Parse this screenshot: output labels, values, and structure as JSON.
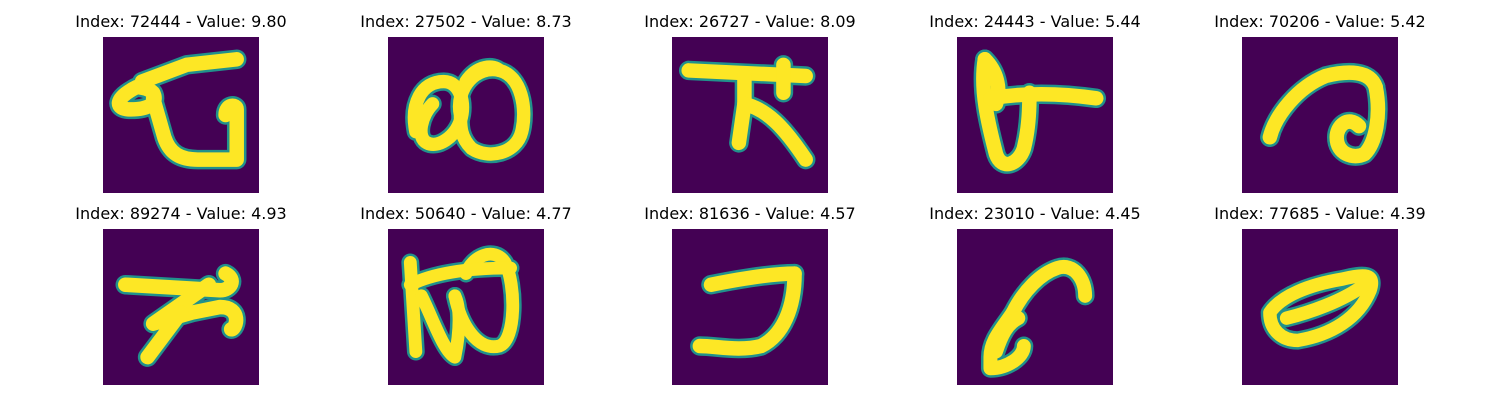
{
  "chart_data": {
    "type": "image_grid",
    "layout": {
      "rows": 2,
      "cols": 5
    },
    "colormap": "viridis",
    "background_color": "#440154",
    "stroke_color": "#fde725",
    "edge_color": "#21918c",
    "panels": [
      {
        "title": "Index: 72444 - Value: 9.80",
        "index": 72444,
        "value": 9.8
      },
      {
        "title": "Index: 27502 - Value: 8.73",
        "index": 27502,
        "value": 8.73
      },
      {
        "title": "Index: 26727 - Value: 8.09",
        "index": 26727,
        "value": 8.09
      },
      {
        "title": "Index: 24443 - Value: 5.44",
        "index": 24443,
        "value": 5.44
      },
      {
        "title": "Index: 70206 - Value: 5.42",
        "index": 70206,
        "value": 5.42
      },
      {
        "title": "Index: 89274 - Value: 4.93",
        "index": 89274,
        "value": 4.93
      },
      {
        "title": "Index: 50640 - Value: 4.77",
        "index": 50640,
        "value": 4.77
      },
      {
        "title": "Index: 81636 - Value: 4.57",
        "index": 81636,
        "value": 4.57
      },
      {
        "title": "Index: 23010 - Value: 4.45",
        "index": 23010,
        "value": 4.45
      },
      {
        "title": "Index: 77685 - Value: 4.39",
        "index": 77685,
        "value": 4.39
      }
    ]
  }
}
